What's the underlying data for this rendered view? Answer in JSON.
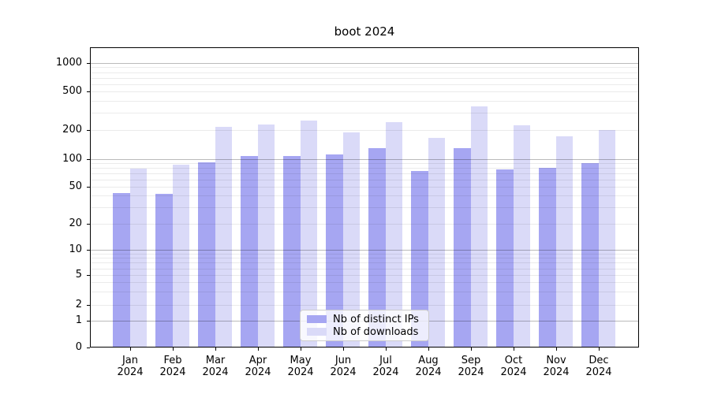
{
  "title": "boot 2024",
  "chart_data": {
    "type": "bar",
    "title": "boot 2024",
    "categories": [
      "Jan",
      "Feb",
      "Mar",
      "Apr",
      "May",
      "Jun",
      "Jul",
      "Aug",
      "Sep",
      "Oct",
      "Nov",
      "Dec"
    ],
    "category_year": "2024",
    "series": [
      {
        "name": "Nb of distinct IPs",
        "color": "#a6a6f2",
        "values": [
          43,
          42,
          92,
          108,
          108,
          111,
          130,
          75,
          131,
          77,
          80,
          90
        ]
      },
      {
        "name": "Nb of downloads",
        "color": "#dadaf8",
        "values": [
          79,
          87,
          215,
          230,
          250,
          190,
          240,
          165,
          350,
          225,
          172,
          200
        ]
      }
    ],
    "yticks": [
      0,
      1,
      2,
      5,
      10,
      20,
      50,
      100,
      200,
      500,
      1000
    ],
    "ylabel": "",
    "xlabel": "",
    "yscale": "log-1-2-5 with 0 baseline",
    "ylim": [
      0,
      1400
    ],
    "grid": "horizontal major (decades) + minor (log subdivisions)",
    "legend_position": "lower center inside plot"
  },
  "colors": {
    "background": "#ffffff",
    "axis": "#000000",
    "major_grid": "#bababa",
    "minor_grid": "#e9e9e9",
    "legend_border": "#cccccc"
  }
}
